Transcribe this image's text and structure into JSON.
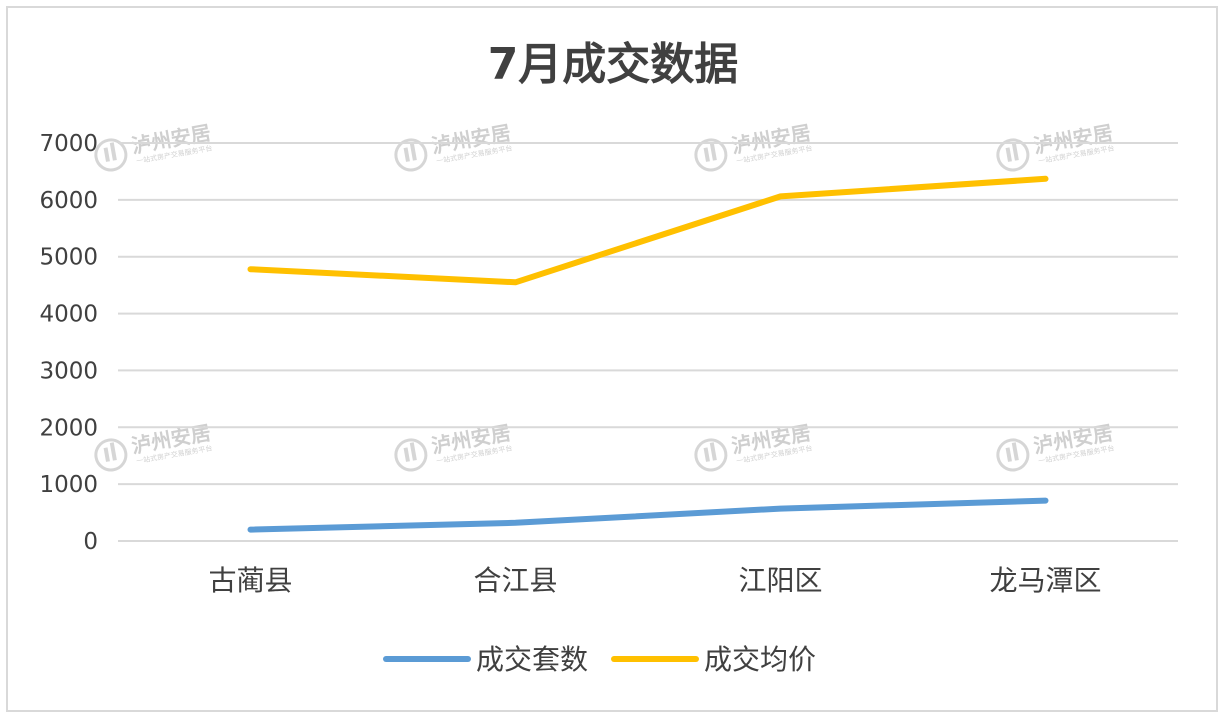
{
  "watermark": {
    "brand": "泸州安居",
    "tagline": "一站式房产交易服务平台"
  },
  "chart_data": {
    "type": "line",
    "title": "7月成交数据",
    "categories": [
      "古蔺县",
      "合江县",
      "江阳区",
      "龙马潭区"
    ],
    "series": [
      {
        "name": "成交套数",
        "values": [
          200,
          320,
          570,
          710
        ],
        "color": "#5b9bd5"
      },
      {
        "name": "成交均价",
        "values": [
          4780,
          4550,
          6060,
          6370
        ],
        "color": "#ffc000"
      }
    ],
    "yticks": [
      "0",
      "1000",
      "2000",
      "3000",
      "4000",
      "5000",
      "6000",
      "7000"
    ],
    "ylim": [
      0,
      7000
    ],
    "grid": true,
    "legend": "bottom"
  }
}
